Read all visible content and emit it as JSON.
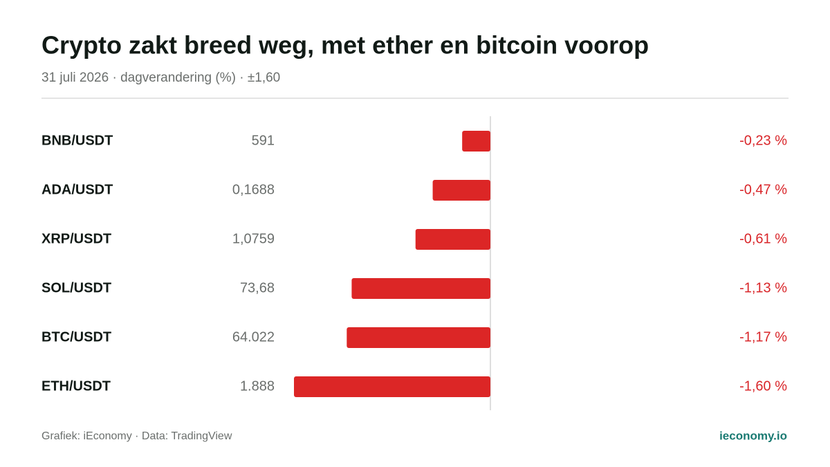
{
  "chart_data": {
    "type": "bar",
    "orientation": "horizontal",
    "title": "Crypto zakt breed weg, met ether en bitcoin voorop",
    "subtitle": "31 juli 2026 · dagverandering (%) · ±1,60",
    "categories": [
      "BNB/USDT",
      "ADA/USDT",
      "XRP/USDT",
      "SOL/USDT",
      "BTC/USDT",
      "ETH/USDT"
    ],
    "prices": [
      "591",
      "0,1688",
      "1,0759",
      "73,68",
      "64.022",
      "1.888"
    ],
    "values": [
      -0.23,
      -0.47,
      -0.61,
      -1.13,
      -1.17,
      -1.6
    ],
    "value_labels": [
      "-0,23 %",
      "-0,47 %",
      "-0,61 %",
      "-1,13 %",
      "-1,17 %",
      "-1,60 %"
    ],
    "color": "#dc2626",
    "xlim": [
      -1.6,
      1.6
    ],
    "source": "Grafiek: iEconomy · Data: TradingView",
    "brand": "ieconomy.io"
  }
}
